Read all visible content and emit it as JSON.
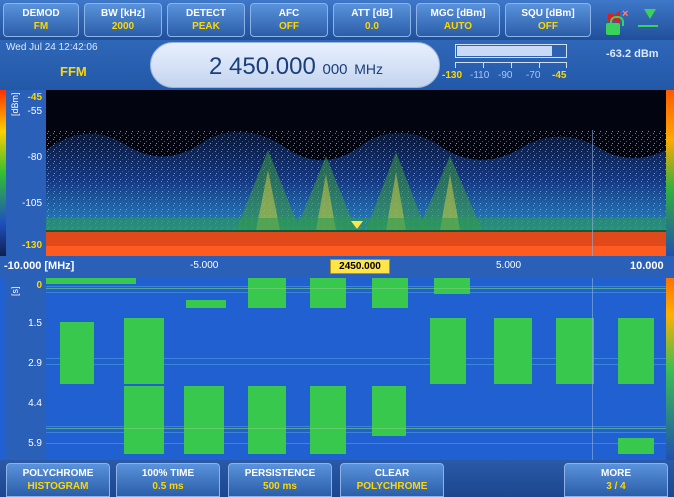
{
  "top_menu": [
    {
      "label": "DEMOD",
      "value": "FM"
    },
    {
      "label": "BW [kHz]",
      "value": "2000"
    },
    {
      "label": "DETECT",
      "value": "PEAK"
    },
    {
      "label": "AFC",
      "value": "OFF"
    },
    {
      "label": "ATT [dB]",
      "value": "0.0"
    },
    {
      "label": "MGC [dBm]",
      "value": "AUTO"
    },
    {
      "label": "SQU [dBm]",
      "value": "OFF"
    }
  ],
  "info": {
    "datetime": "Wed Jul 24  12:42:06",
    "mode": "FFM",
    "frequency_main": "2 450.000",
    "frequency_sub": "000",
    "frequency_unit": "MHz",
    "level_readout": "-63.2  dBm",
    "level_fraction": 0.88,
    "level_scale": [
      "-130",
      "-110",
      "-90",
      "-70",
      "-45"
    ]
  },
  "spectrum": {
    "y_unit": "[dBm]",
    "y_labels": [
      "-45",
      "-55",
      "-80",
      "-105",
      "-130"
    ]
  },
  "freq_axis": {
    "labels": [
      "-10.000 [MHz]",
      "-5.000",
      "5.000",
      "10.000"
    ],
    "center": "2450.000"
  },
  "waterfall": {
    "y_unit": "[s]",
    "y_labels": [
      "0",
      "1.5",
      "2.9",
      "4.4",
      "5.9"
    ]
  },
  "softkeys": [
    {
      "label": "POLYCHROME",
      "value": "HISTOGRAM"
    },
    {
      "label": "100% TIME",
      "value": "0.5 ms"
    },
    {
      "label": "PERSISTENCE",
      "value": "500 ms"
    },
    {
      "label": "CLEAR",
      "value": "POLYCHROME"
    },
    {
      "label": "MORE",
      "value": "3 / 4"
    }
  ],
  "colors": {
    "accent": "#ffd700",
    "panel": "#2a60b8",
    "signal": "#3ad25a",
    "alert": "#d82020"
  },
  "icons": [
    "speaker-muted-icon",
    "lock-icon",
    "triangle-indicator-icon",
    "usb-icon"
  ]
}
